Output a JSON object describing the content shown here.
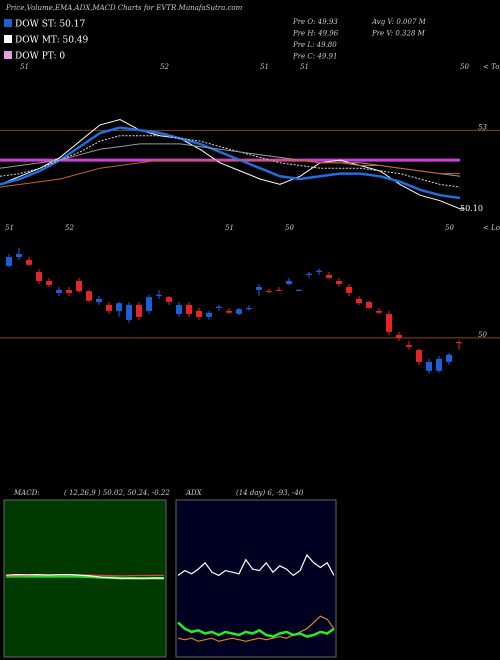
{
  "header": {
    "title": "Price,Volume,EMA,ADX,MACD Charts for EVTR MunafaSutra.com",
    "legend": [
      {
        "label": "DOW ST: 50.17",
        "color": "#1f5fd6"
      },
      {
        "label": "DOW MT: 50.49",
        "color": "#ffffff"
      },
      {
        "label": "DOW PT: 0",
        "color": "#e3a0e0"
      }
    ],
    "quote": [
      "Pre  O: 49.93",
      "Pre  H: 49.96",
      "Pre  L: 49.80",
      "Pre  C: 49.91"
    ],
    "volume": [
      "Avg V: 0.007 M",
      "Pre  V: 0.328 M"
    ]
  },
  "chart_data": [
    {
      "type": "line",
      "categories": [
        "51",
        null,
        null,
        null,
        null,
        null,
        null,
        "52",
        null,
        null,
        null,
        null,
        "51",
        null,
        "51",
        null,
        null,
        null,
        null,
        null,
        null,
        null,
        "50",
        null
      ],
      "axis_note": "< Tops",
      "ylim": [
        49.5,
        55.6
      ],
      "yticks": [
        53
      ],
      "tick_line_color": "#8b4513",
      "hline": {
        "value": 51.9,
        "color": "#d040d8"
      },
      "series": [
        {
          "color": "#ffffff",
          "values": [
            51.0,
            51.3,
            51.6,
            52.0,
            52.6,
            53.2,
            53.4,
            53.0,
            52.8,
            52.7,
            52.3,
            51.8,
            51.5,
            51.2,
            51.0,
            51.3,
            51.8,
            51.9,
            51.7,
            51.5,
            51.0,
            50.6,
            50.4,
            50.1
          ]
        },
        {
          "color": "#1f6fe0",
          "values": [
            51.0,
            51.2,
            51.5,
            51.9,
            52.4,
            52.9,
            53.1,
            53.0,
            52.9,
            52.7,
            52.5,
            52.2,
            51.9,
            51.6,
            51.3,
            51.2,
            51.3,
            51.4,
            51.4,
            51.3,
            51.1,
            50.8,
            50.6,
            50.5
          ]
        },
        {
          "color": "#dddddd",
          "values": [
            51.3,
            51.4,
            51.6,
            51.9,
            52.2,
            52.6,
            52.8,
            52.8,
            52.8,
            52.7,
            52.6,
            52.4,
            52.2,
            52.0,
            51.8,
            51.7,
            51.6,
            51.6,
            51.6,
            51.5,
            51.4,
            51.2,
            51.0,
            50.9
          ]
        },
        {
          "color": "#999999",
          "values": [
            51.6,
            51.7,
            51.8,
            51.9,
            52.1,
            52.3,
            52.4,
            52.5,
            52.5,
            52.5,
            52.4,
            52.3,
            52.2,
            52.1,
            52.0,
            51.9,
            51.8,
            51.8,
            51.8,
            51.7,
            51.6,
            51.5,
            51.4,
            51.3
          ]
        },
        {
          "color": "#c8641e",
          "values": [
            50.9,
            51.0,
            51.1,
            51.2,
            51.4,
            51.6,
            51.7,
            51.8,
            51.9,
            51.9,
            51.9,
            51.9,
            51.9,
            51.9,
            51.9,
            51.9,
            51.8,
            51.8,
            51.7,
            51.7,
            51.6,
            51.5,
            51.4,
            51.4
          ]
        }
      ],
      "last_price": {
        "value": 50.1,
        "label": "50.10"
      }
    },
    {
      "type": "candlestick",
      "categories": [
        "51",
        null,
        null,
        null,
        null,
        null,
        "52",
        null,
        null,
        null,
        null,
        null,
        null,
        null,
        null,
        null,
        null,
        null,
        null,
        null,
        null,
        null,
        "51",
        null,
        null,
        null,
        null,
        null,
        "50",
        null,
        null,
        null,
        null,
        null,
        null,
        null,
        null,
        null,
        null,
        null,
        null,
        null,
        null,
        null,
        "50",
        null
      ],
      "axis_note": "< Lows",
      "ylim": [
        47.63,
        51.8
      ],
      "yticks": [
        50
      ],
      "tick_line_color": "#8b4513",
      "up_color": "#1f5fd6",
      "down_color": "#e32626",
      "open": [
        51.2,
        51.35,
        51.3,
        51.1,
        50.95,
        50.75,
        50.8,
        50.95,
        50.78,
        50.6,
        50.55,
        50.45,
        50.3,
        50.55,
        50.45,
        50.7,
        50.68,
        50.4,
        50.55,
        50.45,
        50.35,
        50.5,
        50.45,
        50.4,
        50.48,
        50.8,
        50.78,
        50.8,
        50.9,
        50.8,
        51.05,
        51.1,
        51.05,
        50.95,
        50.85,
        50.65,
        50.6,
        50.45,
        50.4,
        50.05,
        49.88,
        49.8,
        49.45,
        49.45,
        49.6,
        49.93
      ],
      "high": [
        51.4,
        51.5,
        51.35,
        51.15,
        51.0,
        50.85,
        50.85,
        51.0,
        50.8,
        50.7,
        50.6,
        50.6,
        50.6,
        50.6,
        50.72,
        50.8,
        50.7,
        50.6,
        50.6,
        50.5,
        50.45,
        50.55,
        50.5,
        50.5,
        50.55,
        50.9,
        50.82,
        50.85,
        51.0,
        50.82,
        51.1,
        51.15,
        51.1,
        51.0,
        50.9,
        50.7,
        50.62,
        50.5,
        50.45,
        50.1,
        49.95,
        49.82,
        49.65,
        49.7,
        49.75,
        49.96
      ],
      "low": [
        51.18,
        51.3,
        51.2,
        50.9,
        50.85,
        50.7,
        50.7,
        50.75,
        50.6,
        50.55,
        50.4,
        50.35,
        50.25,
        50.3,
        50.4,
        50.65,
        50.55,
        50.35,
        50.35,
        50.3,
        50.3,
        50.45,
        50.4,
        50.38,
        50.45,
        50.7,
        50.75,
        50.78,
        50.88,
        50.78,
        51.0,
        51.05,
        50.98,
        50.85,
        50.7,
        50.55,
        50.48,
        50.4,
        50.05,
        49.95,
        49.8,
        49.55,
        49.4,
        49.42,
        49.55,
        49.8
      ],
      "close": [
        51.35,
        51.4,
        51.22,
        50.95,
        50.88,
        50.8,
        50.75,
        50.78,
        50.62,
        50.65,
        50.45,
        50.58,
        50.55,
        50.35,
        50.68,
        50.72,
        50.6,
        50.55,
        50.4,
        50.35,
        50.42,
        50.52,
        50.42,
        50.48,
        50.5,
        50.85,
        50.77,
        50.79,
        50.95,
        50.8,
        51.07,
        51.12,
        51.0,
        50.9,
        50.75,
        50.58,
        50.5,
        50.42,
        50.1,
        50.0,
        49.85,
        49.6,
        49.6,
        49.65,
        49.72,
        49.91
      ]
    },
    {
      "type": "line",
      "title": "MACD:",
      "subtitle": "( 12,26,9 ) 50.02, 50.24, -0.22",
      "panel_color": "#003a00",
      "ylim": [
        44,
        56
      ],
      "series": [
        {
          "color": "#22dd22",
          "values": [
            50.15,
            50.17,
            50.16,
            50.17,
            50.15,
            50.16,
            50.17,
            50.15,
            50.12,
            50.08,
            50.05,
            50.03,
            50.02,
            50.02,
            50.03,
            50.02
          ]
        },
        {
          "color": "#e04040",
          "values": [
            50.2,
            50.22,
            50.24,
            50.25,
            50.26,
            50.27,
            50.27,
            50.27,
            50.26,
            50.24,
            50.22,
            50.2,
            50.22,
            50.23,
            50.24,
            50.24
          ]
        },
        {
          "color": "#ffffff",
          "values": [
            50.25,
            50.3,
            50.28,
            50.3,
            50.27,
            50.29,
            50.3,
            50.26,
            50.2,
            50.1,
            50.05,
            50.0,
            50.02,
            50.0,
            50.03,
            50.02
          ]
        }
      ]
    },
    {
      "type": "line",
      "title": "ADX",
      "subtitle": "(14 day) 6, -93, -40",
      "panel_color": "#000020",
      "ylim": [
        0,
        100
      ],
      "series": [
        {
          "color": "#e0801e",
          "values": [
            12,
            11,
            12,
            10,
            11,
            12,
            10,
            11,
            12,
            11,
            10,
            11,
            12,
            11,
            12,
            13,
            12,
            14,
            16,
            18,
            22,
            26,
            24,
            18
          ]
        },
        {
          "color": "#22ee22",
          "values": [
            22,
            18,
            16,
            17,
            15,
            16,
            14,
            16,
            15,
            14,
            16,
            15,
            17,
            14,
            13,
            15,
            16,
            14,
            15,
            13,
            14,
            16,
            15,
            18
          ]
        },
        {
          "color": "#ffffff",
          "values": [
            52,
            55,
            53,
            56,
            60,
            54,
            52,
            55,
            54,
            53,
            62,
            56,
            55,
            60,
            54,
            58,
            56,
            52,
            55,
            65,
            60,
            57,
            60,
            52
          ]
        }
      ]
    }
  ]
}
